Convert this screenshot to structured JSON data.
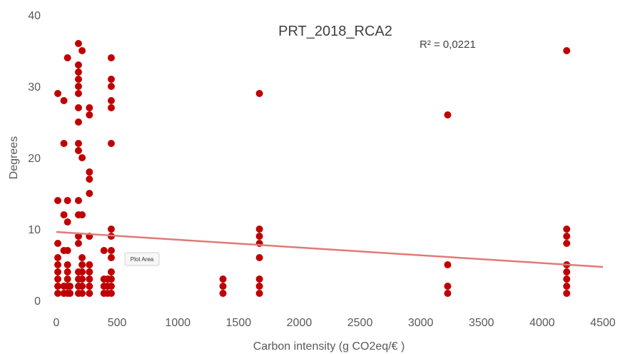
{
  "chart_data": {
    "type": "scatter",
    "title": "PRT_2018_RCA2",
    "xlabel": "Carbon intensity (g CO2eq/€ )",
    "ylabel": "Degrees",
    "xlim": [
      0,
      4500
    ],
    "ylim": [
      0,
      40
    ],
    "x_ticks": [
      "0",
      "500",
      "1000",
      "1500",
      "2000",
      "2500",
      "3000",
      "3500",
      "4000",
      "4500"
    ],
    "y_ticks": [
      "0",
      "10",
      "20",
      "30",
      "40"
    ],
    "grid": false,
    "marker_color": "#c00000",
    "trendline": {
      "type": "linear",
      "color": "#e07a78",
      "x": [
        0,
        4500
      ],
      "y": [
        9.6,
        4.7
      ],
      "r_squared_label": "R² = 0,0221"
    },
    "tooltip_text": "Plot Area",
    "points": [
      [
        12,
        1
      ],
      [
        12,
        2
      ],
      [
        12,
        3
      ],
      [
        12,
        4
      ],
      [
        12,
        5
      ],
      [
        12,
        6
      ],
      [
        12,
        8
      ],
      [
        12,
        14
      ],
      [
        12,
        29
      ],
      [
        62,
        1
      ],
      [
        62,
        2
      ],
      [
        62,
        7
      ],
      [
        62,
        12
      ],
      [
        62,
        22
      ],
      [
        62,
        28
      ],
      [
        92,
        1
      ],
      [
        92,
        2
      ],
      [
        92,
        3
      ],
      [
        92,
        4
      ],
      [
        92,
        5
      ],
      [
        92,
        7
      ],
      [
        92,
        11
      ],
      [
        92,
        14
      ],
      [
        92,
        34
      ],
      [
        112,
        1
      ],
      [
        112,
        2
      ],
      [
        182,
        1
      ],
      [
        182,
        2
      ],
      [
        182,
        3
      ],
      [
        182,
        4
      ],
      [
        182,
        8
      ],
      [
        182,
        9
      ],
      [
        182,
        12
      ],
      [
        182,
        14
      ],
      [
        182,
        21
      ],
      [
        182,
        22
      ],
      [
        182,
        25
      ],
      [
        182,
        27
      ],
      [
        182,
        29
      ],
      [
        182,
        30
      ],
      [
        182,
        31
      ],
      [
        182,
        32
      ],
      [
        182,
        33
      ],
      [
        182,
        36
      ],
      [
        212,
        1
      ],
      [
        212,
        2
      ],
      [
        212,
        3
      ],
      [
        212,
        4
      ],
      [
        212,
        5
      ],
      [
        212,
        6
      ],
      [
        212,
        12
      ],
      [
        212,
        20
      ],
      [
        212,
        35
      ],
      [
        272,
        1
      ],
      [
        272,
        2
      ],
      [
        272,
        3
      ],
      [
        272,
        4
      ],
      [
        272,
        5
      ],
      [
        272,
        9
      ],
      [
        272,
        15
      ],
      [
        272,
        17
      ],
      [
        272,
        18
      ],
      [
        272,
        26
      ],
      [
        272,
        27
      ],
      [
        392,
        1
      ],
      [
        392,
        2
      ],
      [
        392,
        3
      ],
      [
        392,
        7
      ],
      [
        422,
        1
      ],
      [
        422,
        2
      ],
      [
        422,
        3
      ],
      [
        452,
        1
      ],
      [
        452,
        2
      ],
      [
        452,
        3
      ],
      [
        452,
        4
      ],
      [
        452,
        6
      ],
      [
        452,
        7
      ],
      [
        452,
        9
      ],
      [
        452,
        10
      ],
      [
        452,
        22
      ],
      [
        452,
        27
      ],
      [
        452,
        28
      ],
      [
        452,
        30
      ],
      [
        452,
        31
      ],
      [
        452,
        34
      ],
      [
        1372,
        1
      ],
      [
        1372,
        2
      ],
      [
        1372,
        3
      ],
      [
        1672,
        1
      ],
      [
        1672,
        2
      ],
      [
        1672,
        3
      ],
      [
        1672,
        6
      ],
      [
        1672,
        8
      ],
      [
        1672,
        9
      ],
      [
        1672,
        10
      ],
      [
        1672,
        29
      ],
      [
        3222,
        1
      ],
      [
        3222,
        2
      ],
      [
        3222,
        5
      ],
      [
        3222,
        26
      ],
      [
        4202,
        1
      ],
      [
        4202,
        2
      ],
      [
        4202,
        3
      ],
      [
        4202,
        4
      ],
      [
        4202,
        5
      ],
      [
        4202,
        8
      ],
      [
        4202,
        9
      ],
      [
        4202,
        10
      ],
      [
        4202,
        35
      ]
    ]
  }
}
